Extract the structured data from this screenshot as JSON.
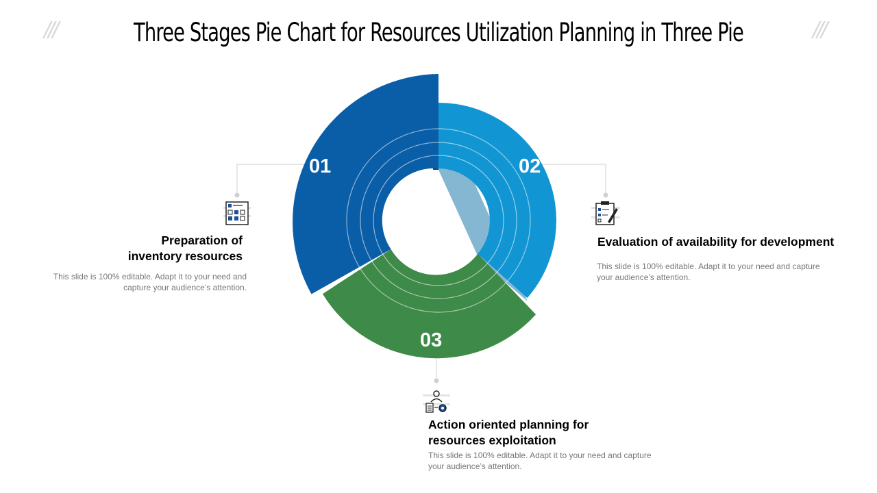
{
  "title": "Three Stages Pie Chart for Resources Utilization Planning in Three Pie",
  "decoration_glyph": "///",
  "colors": {
    "segment_1": "#0a5ea8",
    "segment_2": "#1296d3",
    "segment_3": "#3e8a48"
  },
  "segments": [
    {
      "number": "01",
      "heading_lines": [
        "Preparation of",
        "inventory resources"
      ],
      "body_lines": [
        "This slide is 100% editable. Adapt it to your need and",
        "capture your audience’s attention."
      ],
      "icon": "inventory-checklist-icon"
    },
    {
      "number": "02",
      "heading_lines": [
        "Evaluation of availability for development"
      ],
      "body_lines": [
        "This slide is 100% editable. Adapt it to your need and capture",
        "your audience’s attention."
      ],
      "icon": "clipboard-pen-icon"
    },
    {
      "number": "03",
      "heading_lines": [
        "Action oriented planning for",
        "resources exploitation"
      ],
      "body_lines": [
        "This slide is 100% editable. Adapt it to your need and capture",
        "your audience’s attention."
      ],
      "icon": "person-gear-planning-icon"
    }
  ]
}
